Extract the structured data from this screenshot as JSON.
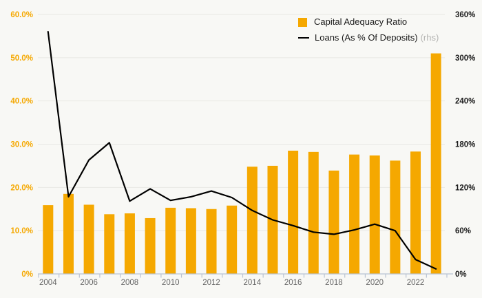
{
  "chart_data": {
    "type": "bar",
    "combo": "bar+line dual axis",
    "categories": [
      "2004",
      "2005",
      "2006",
      "2007",
      "2008",
      "2009",
      "2010",
      "2011",
      "2012",
      "2013",
      "2014",
      "2015",
      "2016",
      "2017",
      "2018",
      "2019",
      "2020",
      "2021",
      "2022",
      "2023"
    ],
    "series": [
      {
        "name": "Capital Adequacy Ratio",
        "type": "bar",
        "axis": "left",
        "color": "#f5a800",
        "values": [
          15.9,
          18.5,
          16.0,
          13.8,
          14.0,
          12.9,
          15.3,
          15.2,
          15.0,
          15.8,
          24.8,
          25.0,
          28.5,
          28.2,
          23.9,
          27.6,
          27.4,
          26.2,
          28.3,
          51.0
        ]
      },
      {
        "name": "Loans (As % Of Deposits)",
        "type": "line",
        "axis": "right",
        "color": "#000000",
        "values": [
          336,
          107,
          158,
          182,
          101,
          118,
          102,
          107,
          115,
          106,
          88,
          75,
          67,
          58,
          55,
          61,
          69,
          60,
          20,
          7
        ]
      }
    ],
    "title": "",
    "xlabel": "",
    "ylabel": "",
    "left_axis": {
      "min": 0,
      "max": 60,
      "tick_labels": [
        "60.0%",
        "50.0%",
        "40.0%",
        "30.0%",
        "20.0%",
        "10.0%",
        "0%"
      ]
    },
    "right_axis": {
      "min": 0,
      "max": 360,
      "tick_labels": [
        "360%",
        "300%",
        "240%",
        "180%",
        "120%",
        "60%",
        "0%"
      ]
    },
    "x_tick_labels": [
      "2004",
      "2006",
      "2008",
      "2010",
      "2012",
      "2014",
      "2016",
      "2018",
      "2020",
      "2022"
    ],
    "grid": true,
    "legend_position": "top-right"
  },
  "legend": {
    "bar_label": "Capital Adequacy Ratio",
    "line_label": "Loans (As % Of Deposits)",
    "rhs_suffix": "(rhs)"
  },
  "colors": {
    "background": "#f8f8f5",
    "bar": "#f5a800",
    "line": "#000000",
    "gridline": "#e8e8e4",
    "axis_line": "#b9c3d4",
    "left_tick_label": "#f5a800",
    "right_tick_label": "#1a1a1a",
    "x_tick_label": "#666666",
    "rhs_text": "#b5b5b3"
  }
}
